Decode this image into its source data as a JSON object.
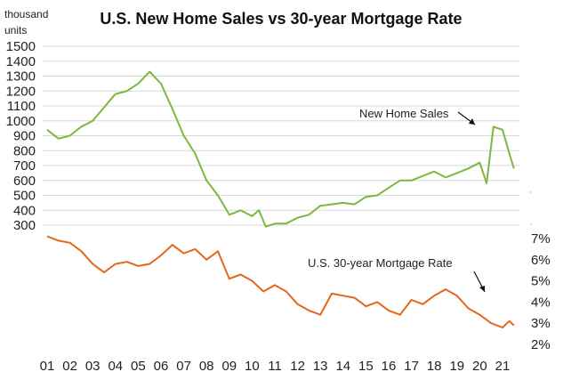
{
  "chart_data": {
    "type": "line",
    "title": "U.S. New Home Sales vs 30-year Mortgage Rate",
    "left_axis": {
      "unit_label_line1": "thousand",
      "unit_label_line2": "units",
      "ticks": [
        300,
        400,
        500,
        600,
        700,
        800,
        900,
        1000,
        1100,
        1200,
        1300,
        1400,
        1500
      ]
    },
    "right_axis": {
      "ticks": [
        "2%",
        "3%",
        "4%",
        "5%",
        "6%",
        "7%"
      ],
      "range": [
        2,
        7
      ]
    },
    "x_ticks": [
      "01",
      "02",
      "03",
      "04",
      "05",
      "06",
      "07",
      "08",
      "09",
      "10",
      "11",
      "12",
      "13",
      "14",
      "15",
      "16",
      "17",
      "18",
      "19",
      "20",
      "21"
    ],
    "annotations": {
      "home_sales": "New Home Sales",
      "mortgage": "U.S. 30-year Mortgage Rate"
    },
    "colors": {
      "home_sales": "#7cb83f",
      "mortgage": "#e4661a",
      "grid": "#d9d9d9"
    },
    "series": [
      {
        "name": "New Home Sales",
        "unit": "thousand units",
        "x": [
          2001.0,
          2001.5,
          2002.0,
          2002.5,
          2003.0,
          2003.5,
          2004.0,
          2004.5,
          2005.0,
          2005.5,
          2006.0,
          2006.5,
          2007.0,
          2007.5,
          2008.0,
          2008.5,
          2009.0,
          2009.5,
          2010.0,
          2010.3,
          2010.6,
          2011.0,
          2011.5,
          2012.0,
          2012.5,
          2013.0,
          2013.5,
          2014.0,
          2014.5,
          2015.0,
          2015.5,
          2016.0,
          2016.5,
          2017.0,
          2017.5,
          2018.0,
          2018.5,
          2019.0,
          2019.5,
          2020.0,
          2020.3,
          2020.6,
          2021.0,
          2021.3,
          2021.5
        ],
        "values": [
          940,
          880,
          900,
          960,
          1000,
          1090,
          1180,
          1200,
          1250,
          1330,
          1250,
          1080,
          900,
          780,
          600,
          500,
          370,
          400,
          360,
          400,
          290,
          310,
          310,
          350,
          370,
          430,
          440,
          450,
          440,
          490,
          500,
          550,
          600,
          600,
          630,
          660,
          620,
          650,
          680,
          720,
          580,
          960,
          940,
          780,
          680
        ]
      },
      {
        "name": "U.S. 30-year Mortgage Rate",
        "unit": "%",
        "x": [
          2001.0,
          2001.5,
          2002.0,
          2002.5,
          2003.0,
          2003.5,
          2004.0,
          2004.5,
          2005.0,
          2005.5,
          2006.0,
          2006.5,
          2007.0,
          2007.5,
          2008.0,
          2008.5,
          2009.0,
          2009.5,
          2010.0,
          2010.5,
          2011.0,
          2011.5,
          2012.0,
          2012.5,
          2013.0,
          2013.5,
          2014.0,
          2014.5,
          2015.0,
          2015.5,
          2016.0,
          2016.5,
          2017.0,
          2017.5,
          2018.0,
          2018.5,
          2019.0,
          2019.5,
          2020.0,
          2020.5,
          2021.0,
          2021.3,
          2021.5
        ],
        "values": [
          7.1,
          6.9,
          6.8,
          6.4,
          5.8,
          5.4,
          5.8,
          5.9,
          5.7,
          5.8,
          6.2,
          6.7,
          6.3,
          6.5,
          6.0,
          6.4,
          5.1,
          5.3,
          5.0,
          4.5,
          4.8,
          4.5,
          3.9,
          3.6,
          3.4,
          4.4,
          4.3,
          4.2,
          3.8,
          4.0,
          3.6,
          3.4,
          4.1,
          3.9,
          4.3,
          4.6,
          4.3,
          3.7,
          3.4,
          3.0,
          2.8,
          3.1,
          2.9
        ]
      }
    ]
  }
}
